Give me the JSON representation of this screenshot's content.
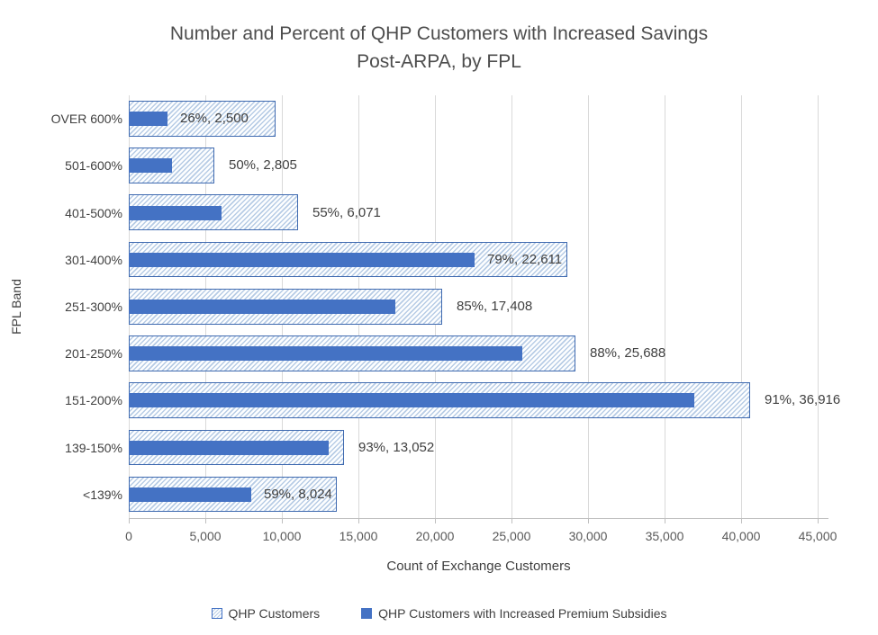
{
  "chart_data": {
    "type": "bar",
    "orientation": "horizontal",
    "title": "Number and Percent of QHP Customers with Increased Savings Post-ARPA, by FPL",
    "title_lines": [
      "Number and Percent of QHP Customers with Increased Savings",
      "Post-ARPA, by FPL"
    ],
    "xlabel": "Count of Exchange Customers",
    "ylabel": "FPL Band",
    "categories": [
      "OVER 600%",
      "501-600%",
      "401-500%",
      "301-400%",
      "251-300%",
      "201-250%",
      "151-200%",
      "139-150%",
      "<139%"
    ],
    "series": [
      {
        "name": "QHP Customers",
        "style": "hatched",
        "values": [
          9615,
          5610,
          11040,
          28620,
          20480,
          29190,
          40570,
          14030,
          13600
        ]
      },
      {
        "name": "QHP Customers with Increased Premium Subsidies",
        "style": "solid",
        "values": [
          2500,
          2805,
          6071,
          22611,
          17408,
          25688,
          36916,
          13052,
          8024
        ]
      }
    ],
    "percent_with_increase": [
      26,
      50,
      55,
      79,
      85,
      88,
      91,
      93,
      59
    ],
    "data_labels": [
      "26%, 2,500",
      "50%, 2,805",
      "55%, 6,071",
      "79%, 22,611",
      "85%, 17,408",
      "88%, 25,688",
      "91%, 36,916",
      "93%, 13,052",
      "59%, 8,024"
    ],
    "x_ticks": [
      "0",
      "5,000",
      "10,000",
      "15,000",
      "20,000",
      "25,000",
      "30,000",
      "35,000",
      "40,000",
      "45,000"
    ],
    "xlim": [
      0,
      45000
    ],
    "grid": true,
    "legend_position": "bottom",
    "colors": {
      "solid_bar": "#4472C4",
      "hatch_stripe": "#B7CCE5",
      "hatch_bg": "#FDFEFF",
      "hatch_border": "#3F6AB0",
      "gridline": "#D9D9D9",
      "axis_line": "#BFBFBF",
      "tick_text": "#595959",
      "label_text": "#404040",
      "title_text": "#4D4D4D"
    }
  }
}
